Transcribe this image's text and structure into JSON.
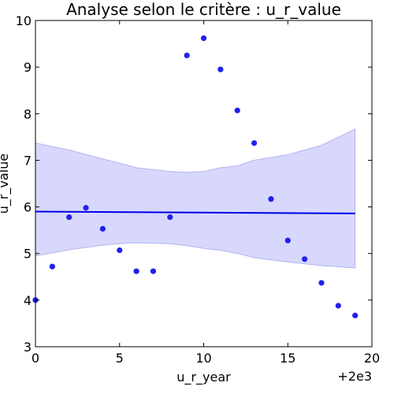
{
  "chart_data": {
    "type": "scatter",
    "title": "Analyse selon le critère : u_r_value",
    "xlabel": "u_r_year",
    "ylabel": "u_r_value",
    "x_offset_label": "+2e3",
    "xlim": [
      0,
      20
    ],
    "ylim": [
      3,
      10
    ],
    "xticks": [
      "0",
      "5",
      "10",
      "15",
      "20"
    ],
    "yticks": [
      "3",
      "4",
      "5",
      "6",
      "7",
      "8",
      "9",
      "10"
    ],
    "grid": false,
    "legend": "none",
    "points": [
      {
        "x": 0,
        "y": 4.0
      },
      {
        "x": 1,
        "y": 4.72
      },
      {
        "x": 2,
        "y": 5.78
      },
      {
        "x": 3,
        "y": 5.98
      },
      {
        "x": 4,
        "y": 5.53
      },
      {
        "x": 5,
        "y": 5.07
      },
      {
        "x": 6,
        "y": 4.62
      },
      {
        "x": 7,
        "y": 4.62
      },
      {
        "x": 8,
        "y": 5.78
      },
      {
        "x": 9,
        "y": 9.25
      },
      {
        "x": 10,
        "y": 9.62
      },
      {
        "x": 11,
        "y": 8.95
      },
      {
        "x": 12,
        "y": 8.07
      },
      {
        "x": 13,
        "y": 7.37
      },
      {
        "x": 14,
        "y": 6.17
      },
      {
        "x": 15,
        "y": 5.28
      },
      {
        "x": 16,
        "y": 4.88
      },
      {
        "x": 17,
        "y": 4.37
      },
      {
        "x": 18,
        "y": 3.88
      },
      {
        "x": 19,
        "y": 3.67
      }
    ],
    "regression": {
      "x": [
        0,
        19
      ],
      "y": [
        5.9,
        5.86
      ]
    },
    "confidence_band": {
      "x": [
        0,
        2,
        4,
        5,
        6,
        8,
        9,
        10,
        11,
        12,
        13,
        15,
        17,
        19
      ],
      "upper": [
        7.37,
        7.22,
        7.03,
        6.94,
        6.84,
        6.76,
        6.74,
        6.76,
        6.84,
        6.88,
        7.0,
        7.12,
        7.32,
        7.67
      ],
      "lower": [
        4.95,
        5.08,
        5.18,
        5.21,
        5.23,
        5.21,
        5.17,
        5.11,
        5.07,
        5.0,
        4.91,
        4.82,
        4.74,
        4.69
      ]
    },
    "colors": {
      "points": "#2020ee",
      "regression": "#0000e6",
      "band_fill": "#d8d8fd",
      "band_edge": "#b4b4f0"
    }
  }
}
